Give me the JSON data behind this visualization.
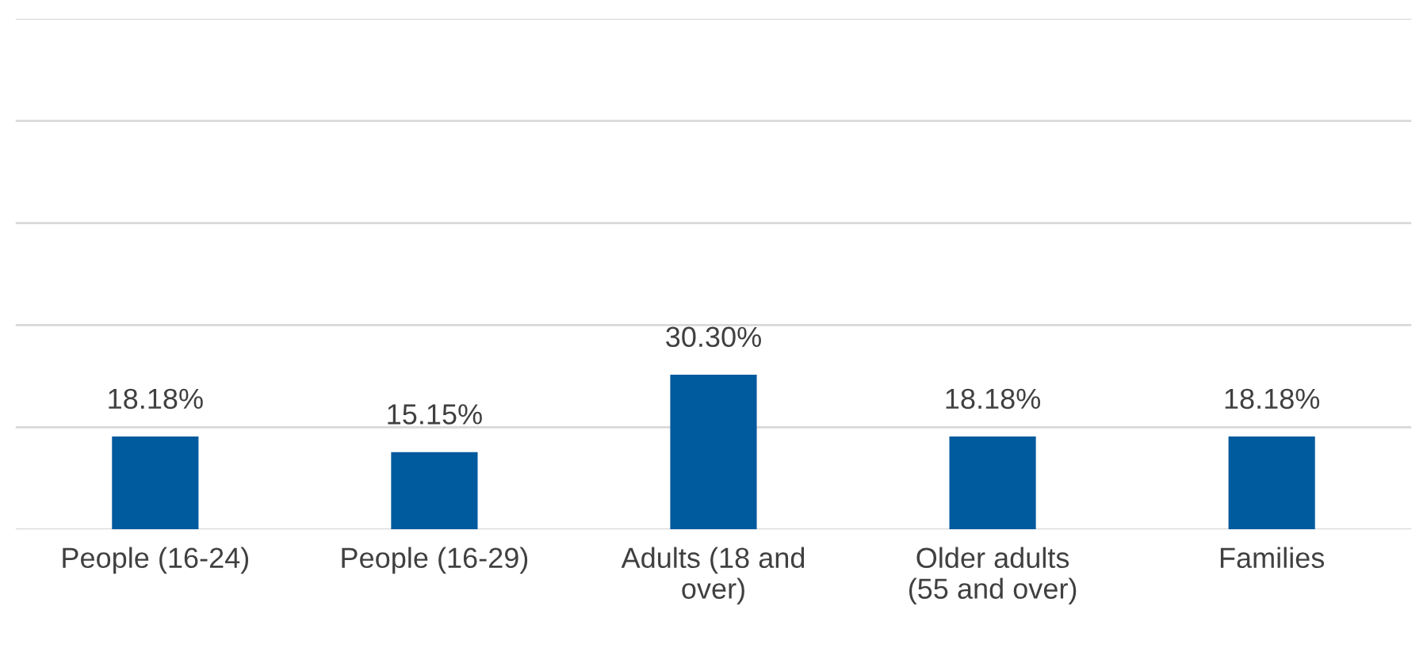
{
  "chart_data": {
    "type": "bar",
    "categories": [
      "People (16-24)",
      "People (16-29)",
      "Adults (18 and over)",
      "Older adults (55 and over)",
      "Families"
    ],
    "values": [
      18.18,
      15.15,
      30.3,
      18.18,
      18.18
    ],
    "value_labels": [
      "18.18%",
      "15.15%",
      "30.30%",
      "18.18%",
      "18.18%"
    ],
    "color": "#005a9e",
    "ylim": [
      0,
      100
    ],
    "yticks": [
      {
        "value": 0,
        "label": null
      },
      {
        "value": 20,
        "label": null
      },
      {
        "value": 40,
        "label": null
      },
      {
        "value": 60,
        "label": null
      },
      {
        "value": 80,
        "label": null
      },
      {
        "value": 100,
        "label": null
      }
    ],
    "grid": "y",
    "tick_labels": "x"
  }
}
